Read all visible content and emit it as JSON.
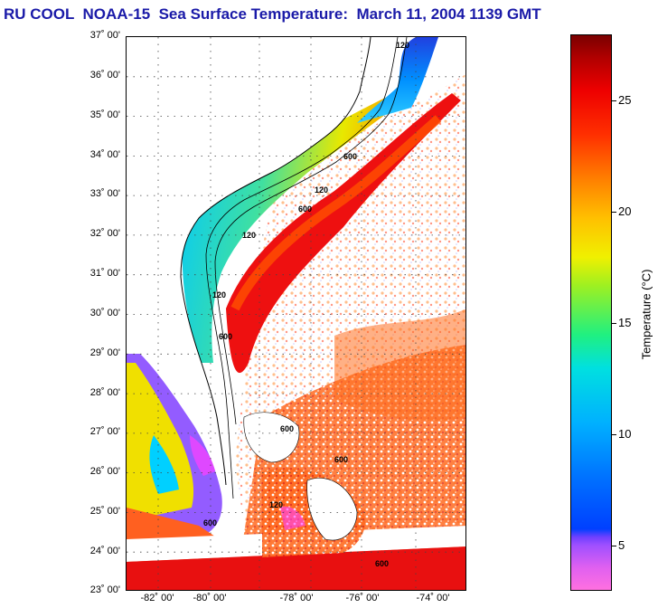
{
  "title": "RU COOL  NOAA-15  Sea Surface Temperature:  March 11, 2004 1139 GMT",
  "map": {
    "lat_labels": [
      "37˚ 00'",
      "36˚ 00'",
      "35˚ 00'",
      "34˚ 00'",
      "33˚ 00'",
      "32˚ 00'",
      "31˚ 00'",
      "30˚ 00'",
      "29˚ 00'",
      "28˚ 00'",
      "27˚ 00'",
      "26˚ 00'",
      "25˚ 00'",
      "24˚ 00'",
      "23˚ 00'"
    ],
    "lon_labels": [
      "-82˚ 00'",
      "-80˚ 00'",
      "-78˚ 00'",
      "-76˚ 00'",
      "-74˚ 00'"
    ],
    "lat_range": [
      23,
      37
    ],
    "lon_range": [
      -83,
      -74.5
    ],
    "grid": "dotted",
    "isobath_labels": [
      "120",
      "600",
      "120",
      "600",
      "120",
      "600",
      "120",
      "600",
      "600",
      "120",
      "600",
      "600"
    ]
  },
  "colorbar": {
    "label": "Temperature (°C)",
    "tick_labels": [
      "25",
      "20",
      "15",
      "10",
      "5"
    ],
    "range": [
      3,
      28
    ]
  }
}
